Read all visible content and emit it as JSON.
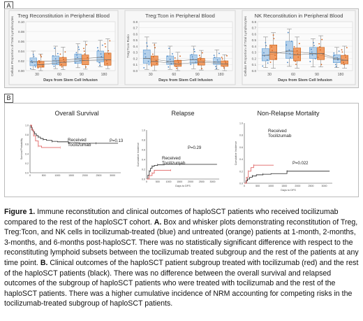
{
  "panel_a_label": "A",
  "panel_b_label": "B",
  "chart_data": [
    {
      "type": "box",
      "title": "Treg Reconstitution in Peripheral Blood",
      "xlabel": "Days from Stem Cell Infusion",
      "ylabel": "Cellular Proportion of Total Lymphocytes",
      "categories": [
        "30",
        "60",
        "90",
        "180"
      ],
      "yticks": [
        "0.00",
        "0.02",
        "0.04",
        "0.06",
        "0.08",
        "0.10"
      ],
      "ylim": [
        0,
        0.1
      ],
      "series": [
        {
          "color": "#9dc3e6",
          "boxes": [
            {
              "min": 0.002,
              "q1": 0.01,
              "median": 0.018,
              "q3": 0.026,
              "max": 0.04
            },
            {
              "min": 0.004,
              "q1": 0.012,
              "median": 0.02,
              "q3": 0.03,
              "max": 0.05
            },
            {
              "min": 0.006,
              "q1": 0.015,
              "median": 0.024,
              "q3": 0.034,
              "max": 0.055
            },
            {
              "min": 0.008,
              "q1": 0.018,
              "median": 0.027,
              "q3": 0.04,
              "max": 0.062
            }
          ]
        },
        {
          "color": "#ed7d31",
          "boxes": [
            {
              "min": 0.0,
              "q1": 0.007,
              "median": 0.012,
              "q3": 0.019,
              "max": 0.034
            },
            {
              "min": 0.002,
              "q1": 0.01,
              "median": 0.017,
              "q3": 0.027,
              "max": 0.048
            },
            {
              "min": 0.003,
              "q1": 0.012,
              "median": 0.021,
              "q3": 0.032,
              "max": 0.06
            },
            {
              "min": 0.004,
              "q1": 0.011,
              "median": 0.022,
              "q3": 0.036,
              "max": 0.065
            }
          ]
        }
      ]
    },
    {
      "type": "box",
      "title": "Treg:Tcon in Peripheral Blood",
      "xlabel": "Days from Stem Cell Infusion",
      "ylabel": "Treg:Tcon Ratio",
      "categories": [
        "30",
        "60",
        "90",
        "180"
      ],
      "yticks": [
        "0.0",
        "0.1",
        "0.2",
        "0.3",
        "0.4",
        "0.5",
        "0.6",
        "0.7",
        "0.8"
      ],
      "ylim": [
        0,
        0.8
      ],
      "series": [
        {
          "color": "#9dc3e6",
          "boxes": [
            {
              "min": 0.02,
              "q1": 0.12,
              "median": 0.2,
              "q3": 0.34,
              "max": 0.55
            },
            {
              "min": 0.02,
              "q1": 0.1,
              "median": 0.15,
              "q3": 0.24,
              "max": 0.4
            },
            {
              "min": 0.03,
              "q1": 0.12,
              "median": 0.18,
              "q3": 0.26,
              "max": 0.4
            },
            {
              "min": 0.02,
              "q1": 0.1,
              "median": 0.14,
              "q3": 0.21,
              "max": 0.34
            }
          ]
        },
        {
          "color": "#ed7d31",
          "boxes": [
            {
              "min": 0.0,
              "q1": 0.09,
              "median": 0.15,
              "q3": 0.24,
              "max": 0.45
            },
            {
              "min": 0.0,
              "q1": 0.07,
              "median": 0.11,
              "q3": 0.17,
              "max": 0.3
            },
            {
              "min": 0.01,
              "q1": 0.09,
              "median": 0.14,
              "q3": 0.2,
              "max": 0.33
            },
            {
              "min": 0.0,
              "q1": 0.07,
              "median": 0.11,
              "q3": 0.16,
              "max": 0.26
            }
          ]
        }
      ]
    },
    {
      "type": "box",
      "title": "NK Reconstitution in Peripheral Blood",
      "xlabel": "Days from Stem Cell Infusion",
      "ylabel": "Cellular Proportion of Total Lymphocytes",
      "categories": [
        "30",
        "60",
        "90",
        "180"
      ],
      "yticks": [
        "0.0",
        "0.1",
        "0.2",
        "0.3",
        "0.4",
        "0.5",
        "0.6",
        "0.7",
        "0.8"
      ],
      "ylim": [
        0,
        0.8
      ],
      "series": [
        {
          "color": "#9dc3e6",
          "boxes": [
            {
              "min": 0.05,
              "q1": 0.16,
              "median": 0.25,
              "q3": 0.36,
              "max": 0.55
            },
            {
              "min": 0.07,
              "q1": 0.2,
              "median": 0.32,
              "q3": 0.48,
              "max": 0.68
            },
            {
              "min": 0.06,
              "q1": 0.2,
              "median": 0.28,
              "q3": 0.38,
              "max": 0.52
            },
            {
              "min": 0.05,
              "q1": 0.13,
              "median": 0.19,
              "q3": 0.26,
              "max": 0.38
            }
          ]
        },
        {
          "color": "#ed7d31",
          "boxes": [
            {
              "min": 0.04,
              "q1": 0.18,
              "median": 0.3,
              "q3": 0.42,
              "max": 0.62
            },
            {
              "min": 0.04,
              "q1": 0.16,
              "median": 0.26,
              "q3": 0.37,
              "max": 0.55
            },
            {
              "min": 0.06,
              "q1": 0.18,
              "median": 0.28,
              "q3": 0.38,
              "max": 0.57
            },
            {
              "min": 0.04,
              "q1": 0.11,
              "median": 0.17,
              "q3": 0.25,
              "max": 0.4
            }
          ]
        }
      ]
    },
    {
      "type": "line",
      "title": "Overall Survival",
      "xlabel": "",
      "ylabel": "Survival Probability",
      "xticks": [
        "0",
        "500",
        "1000",
        "1500",
        "2000",
        "2500",
        "3000"
      ],
      "yticks": [
        "0.0",
        "0.2",
        "0.4",
        "0.6",
        "0.8",
        "1.0"
      ],
      "xlim": [
        0,
        3300
      ],
      "ylim": [
        0,
        1
      ],
      "series": [
        {
          "color": "#222222",
          "steps": [
            [
              0,
              1.0
            ],
            [
              40,
              0.95
            ],
            [
              80,
              0.9
            ],
            [
              120,
              0.86
            ],
            [
              170,
              0.82
            ],
            [
              230,
              0.78
            ],
            [
              300,
              0.75
            ],
            [
              380,
              0.72
            ],
            [
              480,
              0.7
            ],
            [
              600,
              0.68
            ],
            [
              800,
              0.66
            ],
            [
              1000,
              0.65
            ],
            [
              1400,
              0.63
            ],
            [
              1800,
              0.62
            ],
            [
              2400,
              0.62
            ],
            [
              3200,
              0.62
            ]
          ]
        },
        {
          "color": "#e06666",
          "steps": [
            [
              0,
              1.0
            ],
            [
              60,
              0.9
            ],
            [
              130,
              0.78
            ],
            [
              200,
              0.67
            ],
            [
              300,
              0.56
            ],
            [
              420,
              0.53
            ],
            [
              1100,
              0.53
            ]
          ]
        }
      ],
      "annotations": [
        "Received",
        "Tocilizumab",
        "P=0.13"
      ]
    },
    {
      "type": "line",
      "title": "Relapse",
      "xlabel": "Days to DFS",
      "ylabel": "Cumulative Incidence",
      "xticks": [
        "0",
        "500",
        "1000",
        "1500",
        "2000",
        "2500",
        "3000"
      ],
      "yticks": [
        "0.0",
        "0.2",
        "0.4",
        "0.6",
        "0.8",
        "1.0"
      ],
      "xlim": [
        0,
        3300
      ],
      "ylim": [
        0,
        1
      ],
      "series": [
        {
          "color": "#222222",
          "steps": [
            [
              0,
              0.0
            ],
            [
              60,
              0.08
            ],
            [
              120,
              0.16
            ],
            [
              180,
              0.22
            ],
            [
              250,
              0.26
            ],
            [
              350,
              0.28
            ],
            [
              500,
              0.29
            ],
            [
              800,
              0.3
            ],
            [
              1500,
              0.3
            ],
            [
              3200,
              0.3
            ]
          ]
        },
        {
          "color": "#e06666",
          "steps": [
            [
              0,
              0.0
            ],
            [
              120,
              0.07
            ],
            [
              250,
              0.12
            ],
            [
              350,
              0.18
            ],
            [
              1100,
              0.18
            ]
          ]
        }
      ],
      "annotations": [
        "Received",
        "Tocilizumab",
        "P=0.29"
      ]
    },
    {
      "type": "line",
      "title": "Non-Relapse Mortality",
      "xlabel": "Days to DFS",
      "ylabel": "Cumulative Incidence",
      "xticks": [
        "0",
        "500",
        "1000",
        "1500",
        "2000",
        "2500",
        "3000"
      ],
      "yticks": [
        "0.0",
        "0.2",
        "0.4",
        "0.6",
        "0.8",
        "1.0"
      ],
      "xlim": [
        0,
        3300
      ],
      "ylim": [
        0,
        1
      ],
      "series": [
        {
          "color": "#222222",
          "steps": [
            [
              0,
              0.0
            ],
            [
              60,
              0.04
            ],
            [
              120,
              0.07
            ],
            [
              200,
              0.1
            ],
            [
              300,
              0.12
            ],
            [
              450,
              0.14
            ],
            [
              700,
              0.15
            ],
            [
              1000,
              0.16
            ],
            [
              1600,
              0.2
            ],
            [
              3200,
              0.2
            ]
          ]
        },
        {
          "color": "#e06666",
          "steps": [
            [
              0,
              0.0
            ],
            [
              80,
              0.1
            ],
            [
              150,
              0.2
            ],
            [
              250,
              0.26
            ],
            [
              350,
              0.3
            ],
            [
              1100,
              0.3
            ]
          ]
        }
      ],
      "annotations": [
        "Received",
        "Tocilizumab",
        "P=0.022"
      ]
    }
  ],
  "caption": {
    "fig_label": "Figure 1.",
    "s1": " Immune reconstitution and clinical outcomes of haploSCT patients who received tocilizumab compared to the rest of the haploSCT cohort. ",
    "a_label": "A.",
    "s2": " Box and whisker plots demonstrating reconstitution of Treg, Treg:Tcon, and NK cells in tocilizumab-treated (blue) and untreated (orange) patients at 1-month, 2-months, 3-months, and 6-months post-haploSCT. There was no statistically significant difference with respect to the reconstituting lymphoid subsets between the tocilizumab treated subgroup and the rest of the patients at any time point. ",
    "b_label": "B.",
    "s3": " Clinical outcomes of the haploSCT patient subgroup treated with tocilizumab (red) and the rest of the haploSCT patients (black). There was no difference between the overall survival and relapsed outcomes of the subgroup of haploSCT patients who were treated with tocilizumab and the rest of the haploSCT patients. There was a higher cumulative incidence of NRM accounting for competing risks in the tocilizumab-treated subgroup of haploSCT patients."
  }
}
